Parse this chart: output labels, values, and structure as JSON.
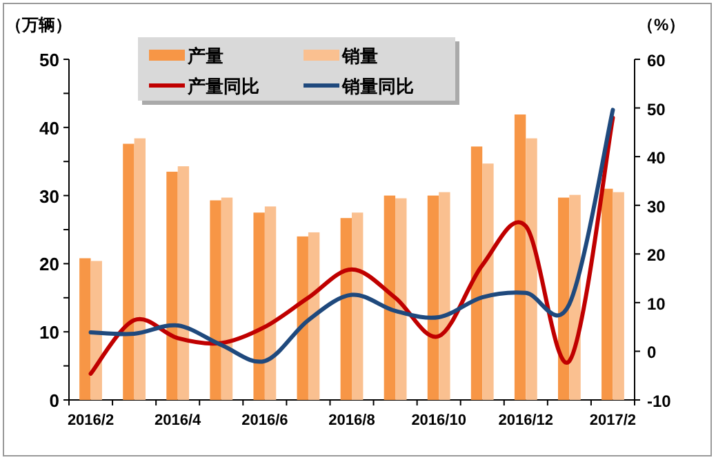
{
  "chart_data": {
    "type": "bar",
    "ylabel": "（万辆）",
    "y2label": "（%）",
    "categories": [
      "2016/2",
      null,
      "2016/4",
      null,
      "2016/6",
      null,
      "2016/8",
      null,
      "2016/10",
      null,
      "2016/12",
      null,
      "2017/2"
    ],
    "series": [
      {
        "name": "产量",
        "color": "#f79646",
        "values": [
          20.8,
          37.6,
          33.5,
          29.3,
          27.5,
          24.0,
          26.7,
          30.0,
          30.0,
          37.2,
          41.9,
          29.7,
          31.0
        ]
      },
      {
        "name": "销量",
        "color": "#fac090",
        "values": [
          20.4,
          38.4,
          34.3,
          29.7,
          28.4,
          24.6,
          27.5,
          29.6,
          30.5,
          34.7,
          38.4,
          30.1,
          30.5
        ]
      },
      {
        "name": "产量同比",
        "type": "line",
        "axis": "y2",
        "color": "#c00000",
        "values": [
          -4.6,
          6.4,
          2.7,
          1.7,
          5.0,
          11.0,
          16.8,
          11.0,
          3.1,
          17.7,
          25.7,
          -2.0,
          48.0
        ]
      },
      {
        "name": "销量同比",
        "type": "line",
        "axis": "y2",
        "color": "#1f497d",
        "values": [
          3.9,
          3.6,
          5.3,
          1.3,
          -2.0,
          6.4,
          11.6,
          8.3,
          7.0,
          11.1,
          12.0,
          9.7,
          49.6
        ]
      }
    ],
    "ylim": [
      0,
      50
    ],
    "yticks": [
      0,
      {
        "value": 5,
        "label": null
      },
      10,
      {
        "value": 15,
        "label": null
      },
      20,
      {
        "value": 25,
        "label": null
      },
      30,
      {
        "value": 35,
        "label": null
      },
      40,
      {
        "value": 45,
        "label": null
      },
      50
    ],
    "y2lim": [
      -10,
      60
    ],
    "y2ticks": [
      -10,
      0,
      10,
      20,
      30,
      40,
      50,
      60
    ],
    "grid": false,
    "legend": "top",
    "marker": "none",
    "line_style": "solid"
  }
}
